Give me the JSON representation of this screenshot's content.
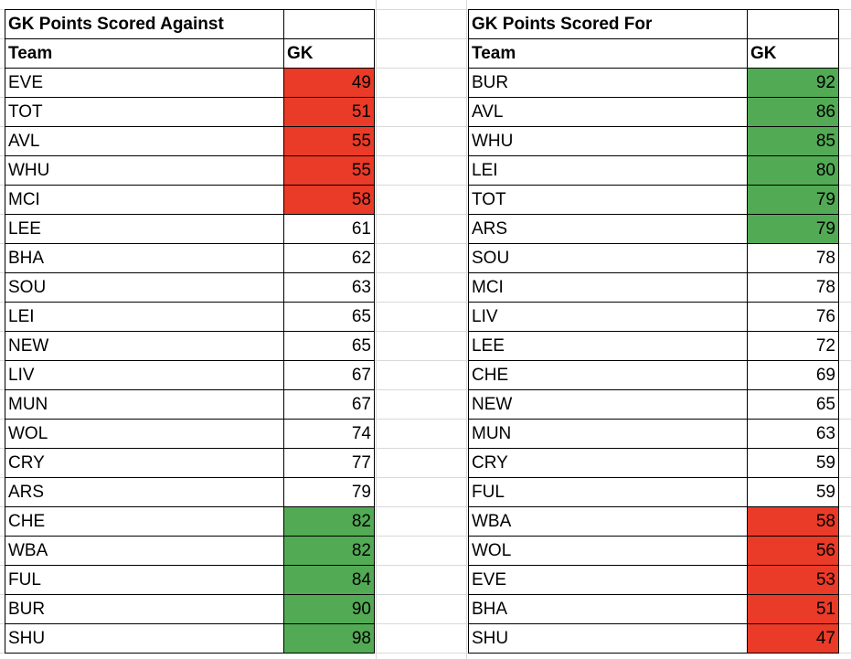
{
  "colors": {
    "red": "#ea3a28",
    "green": "#52aa55"
  },
  "tables": [
    {
      "title": "GK Points Scored Against",
      "col_team": "Team",
      "col_gk": "GK",
      "rows": [
        {
          "team": "EVE",
          "value": 49,
          "fill": "red"
        },
        {
          "team": "TOT",
          "value": 51,
          "fill": "red"
        },
        {
          "team": "AVL",
          "value": 55,
          "fill": "red"
        },
        {
          "team": "WHU",
          "value": 55,
          "fill": "red"
        },
        {
          "team": "MCI",
          "value": 58,
          "fill": "red"
        },
        {
          "team": "LEE",
          "value": 61,
          "fill": ""
        },
        {
          "team": "BHA",
          "value": 62,
          "fill": ""
        },
        {
          "team": "SOU",
          "value": 63,
          "fill": ""
        },
        {
          "team": "LEI",
          "value": 65,
          "fill": ""
        },
        {
          "team": "NEW",
          "value": 65,
          "fill": ""
        },
        {
          "team": "LIV",
          "value": 67,
          "fill": ""
        },
        {
          "team": "MUN",
          "value": 67,
          "fill": ""
        },
        {
          "team": "WOL",
          "value": 74,
          "fill": ""
        },
        {
          "team": "CRY",
          "value": 77,
          "fill": ""
        },
        {
          "team": "ARS",
          "value": 79,
          "fill": ""
        },
        {
          "team": "CHE",
          "value": 82,
          "fill": "green"
        },
        {
          "team": "WBA",
          "value": 82,
          "fill": "green"
        },
        {
          "team": "FUL",
          "value": 84,
          "fill": "green"
        },
        {
          "team": "BUR",
          "value": 90,
          "fill": "green"
        },
        {
          "team": "SHU",
          "value": 98,
          "fill": "green"
        }
      ]
    },
    {
      "title": "GK Points Scored For",
      "col_team": "Team",
      "col_gk": "GK",
      "rows": [
        {
          "team": "BUR",
          "value": 92,
          "fill": "green"
        },
        {
          "team": "AVL",
          "value": 86,
          "fill": "green"
        },
        {
          "team": "WHU",
          "value": 85,
          "fill": "green"
        },
        {
          "team": "LEI",
          "value": 80,
          "fill": "green"
        },
        {
          "team": "TOT",
          "value": 79,
          "fill": "green"
        },
        {
          "team": "ARS",
          "value": 79,
          "fill": "green"
        },
        {
          "team": "SOU",
          "value": 78,
          "fill": ""
        },
        {
          "team": "MCI",
          "value": 78,
          "fill": ""
        },
        {
          "team": "LIV",
          "value": 76,
          "fill": ""
        },
        {
          "team": "LEE",
          "value": 72,
          "fill": ""
        },
        {
          "team": "CHE",
          "value": 69,
          "fill": ""
        },
        {
          "team": "NEW",
          "value": 65,
          "fill": ""
        },
        {
          "team": "MUN",
          "value": 63,
          "fill": ""
        },
        {
          "team": "CRY",
          "value": 59,
          "fill": ""
        },
        {
          "team": "FUL",
          "value": 59,
          "fill": ""
        },
        {
          "team": "WBA",
          "value": 58,
          "fill": "red"
        },
        {
          "team": "WOL",
          "value": 56,
          "fill": "red"
        },
        {
          "team": "EVE",
          "value": 53,
          "fill": "red"
        },
        {
          "team": "BHA",
          "value": 51,
          "fill": "red"
        },
        {
          "team": "SHU",
          "value": 47,
          "fill": "red"
        }
      ]
    }
  ]
}
